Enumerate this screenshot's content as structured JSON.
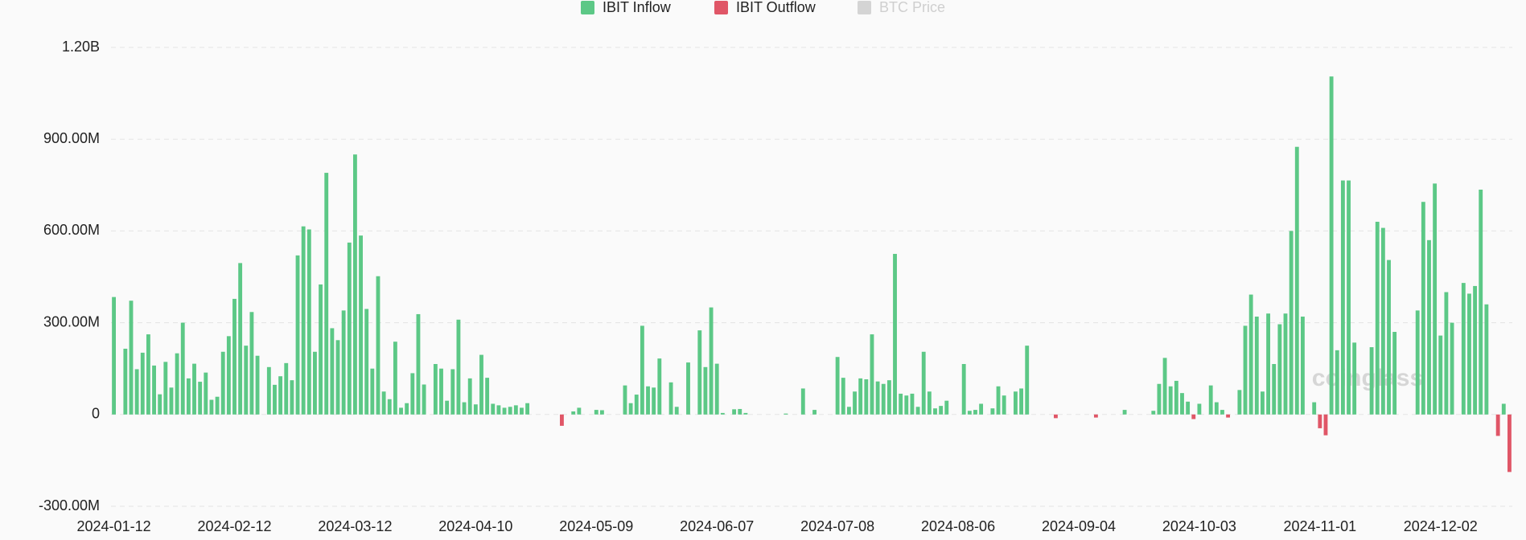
{
  "chart_data": {
    "type": "bar",
    "legend": [
      {
        "name": "IBIT Inflow",
        "color": "#5cc886"
      },
      {
        "name": "IBIT Outflow",
        "color": "#e05667"
      },
      {
        "name": "BTC Price",
        "color": "#d4d4d4",
        "inactive": true
      }
    ],
    "positive_color": "#5cc886",
    "negative_color": "#e05667",
    "watermark": "coinglass",
    "categories": [
      "2024-01-12",
      null,
      null,
      null,
      null,
      null,
      null,
      null,
      null,
      null,
      null,
      null,
      null,
      null,
      null,
      null,
      null,
      null,
      null,
      null,
      null,
      "2024-02-12",
      null,
      null,
      null,
      null,
      null,
      null,
      null,
      null,
      null,
      null,
      null,
      null,
      null,
      null,
      null,
      null,
      null,
      null,
      null,
      null,
      "2024-03-12",
      null,
      null,
      null,
      null,
      null,
      null,
      null,
      null,
      null,
      null,
      null,
      null,
      null,
      null,
      null,
      null,
      null,
      null,
      null,
      null,
      "2024-04-10",
      null,
      null,
      null,
      null,
      null,
      null,
      null,
      null,
      null,
      null,
      null,
      null,
      null,
      null,
      null,
      null,
      null,
      null,
      null,
      null,
      "2024-05-09",
      null,
      null,
      null,
      null,
      null,
      null,
      null,
      null,
      null,
      null,
      null,
      null,
      null,
      null,
      null,
      null,
      null,
      null,
      null,
      null,
      "2024-06-07",
      null,
      null,
      null,
      null,
      null,
      null,
      null,
      null,
      null,
      null,
      null,
      null,
      null,
      null,
      null,
      null,
      null,
      null,
      null,
      null,
      "2024-07-08",
      null,
      null,
      null,
      null,
      null,
      null,
      null,
      null,
      null,
      null,
      null,
      null,
      null,
      null,
      null,
      null,
      null,
      null,
      null,
      null,
      "2024-08-06",
      null,
      null,
      null,
      null,
      null,
      null,
      null,
      null,
      null,
      null,
      null,
      null,
      null,
      null,
      null,
      null,
      null,
      null,
      null,
      null,
      "2024-09-04",
      null,
      null,
      null,
      null,
      null,
      null,
      null,
      null,
      null,
      null,
      null,
      null,
      null,
      null,
      null,
      null,
      null,
      null,
      null,
      null,
      "2024-10-03",
      null,
      null,
      null,
      null,
      null,
      null,
      null,
      null,
      null,
      null,
      null,
      null,
      null,
      null,
      null,
      null,
      null,
      null,
      null,
      null,
      "2024-11-01",
      null,
      null,
      null,
      null,
      null,
      null,
      null,
      null,
      null,
      null,
      null,
      null,
      null,
      null,
      null,
      null,
      null,
      null,
      null,
      null,
      "2024-12-02",
      null,
      null,
      null,
      null,
      null,
      null,
      null,
      null,
      null,
      null,
      null,
      null
    ],
    "values": [
      384000000.0,
      0,
      215000000.0,
      372000000.0,
      148000000.0,
      202000000.0,
      262000000.0,
      160000000.0,
      66000000.0,
      172000000.0,
      88000000.0,
      200000000.0,
      300000000.0,
      118000000.0,
      166000000.0,
      107000000.0,
      137000000.0,
      48000000.0,
      58000000.0,
      205000000.0,
      256000000.0,
      378000000.0,
      495000000.0,
      225000000.0,
      335000000.0,
      192000000.0,
      0,
      155000000.0,
      97000000.0,
      125000000.0,
      168000000.0,
      112000000.0,
      520000000.0,
      615000000.0,
      605000000.0,
      205000000.0,
      425000000.0,
      790000000.0,
      282000000.0,
      243000000.0,
      340000000.0,
      562000000.0,
      850000000.0,
      585000000.0,
      345000000.0,
      150000000.0,
      452000000.0,
      75000000.0,
      50000000.0,
      238000000.0,
      22000000.0,
      37000000.0,
      135000000.0,
      328000000.0,
      98000000.0,
      0,
      165000000.0,
      150000000.0,
      45000000.0,
      148000000.0,
      310000000.0,
      40000000.0,
      118000000.0,
      33000000.0,
      195000000.0,
      120000000.0,
      35000000.0,
      30000000.0,
      22000000.0,
      25000000.0,
      30000000.0,
      22000000.0,
      37000000.0,
      0,
      0,
      0,
      0,
      0,
      -37000000.0,
      0,
      10000000.0,
      22000000.0,
      0,
      0,
      15000000.0,
      14000000.0,
      0,
      0,
      0,
      95000000.0,
      37000000.0,
      65000000.0,
      290000000.0,
      92000000.0,
      88000000.0,
      183000000.0,
      0,
      105000000.0,
      25000000.0,
      0,
      170000000.0,
      0,
      275000000.0,
      155000000.0,
      350000000.0,
      166000000.0,
      5000000.0,
      0,
      17000000.0,
      18000000.0,
      5000000.0,
      0,
      0,
      0,
      0,
      0,
      0,
      3000000.0,
      0,
      0,
      85000000.0,
      0,
      15000000.0,
      0,
      0,
      0,
      188000000.0,
      120000000.0,
      25000000.0,
      75000000.0,
      118000000.0,
      115000000.0,
      262000000.0,
      108000000.0,
      100000000.0,
      112000000.0,
      525000000.0,
      68000000.0,
      62000000.0,
      68000000.0,
      25000000.0,
      205000000.0,
      75000000.0,
      20000000.0,
      28000000.0,
      45000000.0,
      0,
      0,
      165000000.0,
      12000000.0,
      15000000.0,
      35000000.0,
      0,
      20000000.0,
      92000000.0,
      62000000.0,
      0,
      75000000.0,
      85000000.0,
      225000000.0,
      0,
      0,
      0,
      0,
      -12000000.0,
      0,
      0,
      0,
      0,
      0,
      0,
      -10000000.0,
      0,
      0,
      0,
      0,
      15000000.0,
      0,
      0,
      0,
      0,
      12000000.0,
      100000000.0,
      185000000.0,
      92000000.0,
      110000000.0,
      70000000.0,
      42000000.0,
      -15000000.0,
      35000000.0,
      0,
      95000000.0,
      40000000.0,
      15000000.0,
      -10000000.0,
      0,
      80000000.0,
      290000000.0,
      392000000.0,
      320000000.0,
      75000000.0,
      330000000.0,
      165000000.0,
      295000000.0,
      330000000.0,
      600000000.0,
      875000000.0,
      320000000.0,
      0,
      40000000.0,
      -45000000.0,
      -68000000.0,
      1105000000.0,
      210000000.0,
      765000000.0,
      765000000.0,
      235000000.0,
      0,
      0,
      220000000.0,
      630000000.0,
      610000000.0,
      505000000.0,
      270000000.0,
      0,
      0,
      0,
      340000000.0,
      695000000.0,
      570000000.0,
      755000000.0,
      258000000.0,
      400000000.0,
      300000000.0,
      0,
      430000000.0,
      395000000.0,
      420000000.0,
      735000000.0,
      360000000.0,
      0,
      -70000000.0,
      35000000.0,
      -188000000.0
    ],
    "ylim": [
      -300000000.0,
      1200000000.0
    ],
    "yticks": [
      {
        "value": -300000000.0,
        "label": "-300.00M"
      },
      0,
      {
        "value": 300000000.0,
        "label": "300.00M"
      },
      {
        "value": 600000000.0,
        "label": "600.00M"
      },
      {
        "value": 900000000.0,
        "label": "900.00M"
      },
      {
        "value": 1200000000.0,
        "label": "1.20B"
      }
    ],
    "grid": true
  }
}
